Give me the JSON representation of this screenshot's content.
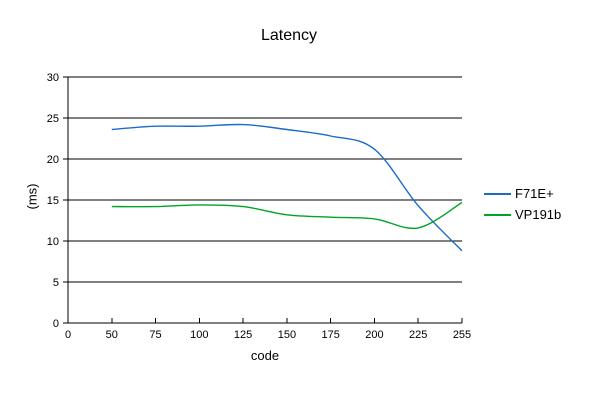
{
  "chart_data": {
    "type": "line",
    "title": "Latency",
    "xlabel": "code",
    "ylabel": "(ms)",
    "categories": [
      "0",
      "50",
      "75",
      "100",
      "125",
      "150",
      "175",
      "200",
      "225",
      "255"
    ],
    "y_ticks": [
      0,
      5,
      10,
      15,
      20,
      25,
      30
    ],
    "ylim": [
      0,
      30
    ],
    "grid": true,
    "smooth": true,
    "legend_position": "right",
    "colors": {
      "background": "#ffffff",
      "axis": "#000000",
      "gridline": "#000000",
      "series_blue": "#1b6cc4",
      "series_green": "#00a428"
    },
    "series": [
      {
        "name": "F71E+",
        "color": "#1b6cc4",
        "x": [
          "50",
          "75",
          "100",
          "125",
          "150",
          "175",
          "200",
          "225",
          "255"
        ],
        "values": [
          23.6,
          24.0,
          24.0,
          24.2,
          23.6,
          22.8,
          21.2,
          14.3,
          8.8
        ]
      },
      {
        "name": "VP191b",
        "color": "#00a428",
        "x": [
          "50",
          "75",
          "100",
          "125",
          "150",
          "175",
          "200",
          "225",
          "255"
        ],
        "values": [
          14.2,
          14.2,
          14.4,
          14.2,
          13.2,
          12.9,
          12.7,
          11.6,
          14.7
        ]
      }
    ]
  }
}
